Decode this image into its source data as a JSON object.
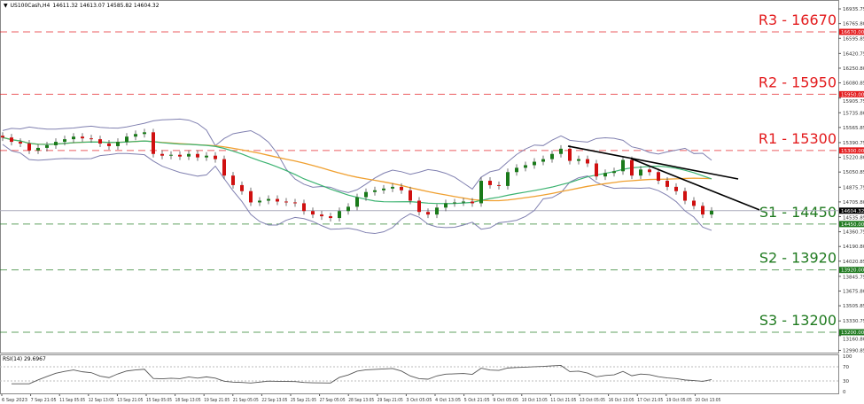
{
  "header": {
    "symbol": "US100Cash,H4",
    "ohlc": "14611.32 14613.07 14585.82 14604.32"
  },
  "chart_data": {
    "type": "candlestick",
    "symbol": "US100Cash",
    "timeframe": "H4",
    "ylim": [
      12950,
      17020
    ],
    "y_ticks": [
      "16935.75",
      "16765.80",
      "16595.85",
      "16420.75",
      "16250.80",
      "16080.85",
      "15905.75",
      "15735.80",
      "15565.85",
      "15390.75",
      "15220.80",
      "15050.85",
      "14875.75",
      "14705.80",
      "14535.85",
      "14360.75",
      "14190.80",
      "14020.85",
      "13845.75",
      "13675.80",
      "13505.85",
      "13330.75",
      "13160.80",
      "12990.85"
    ],
    "x_ticks": [
      "6 Sep 2023",
      "7 Sep 21:05",
      "11 Sep 05:05",
      "12 Sep 13:05",
      "13 Sep 21:05",
      "15 Sep 05:05",
      "18 Sep 13:05",
      "19 Sep 21:05",
      "21 Sep 05:05",
      "22 Sep 13:05",
      "25 Sep 21:05",
      "27 Sep 05:05",
      "28 Sep 13:05",
      "29 Sep 21:05",
      "3 Oct 05:05",
      "4 Oct 13:05",
      "5 Oct 21:05",
      "9 Oct 05:05",
      "10 Oct 13:05",
      "11 Oct 21:05",
      "13 Oct 05:05",
      "16 Oct 13:05",
      "17 Oct 21:05",
      "19 Oct 05:05",
      "20 Oct 13:05"
    ],
    "closes": [
      15450,
      15400,
      15380,
      15300,
      15330,
      15360,
      15400,
      15430,
      15460,
      15440,
      15430,
      15380,
      15350,
      15400,
      15460,
      15490,
      15510,
      15260,
      15240,
      15250,
      15230,
      15260,
      15220,
      15240,
      15200,
      15010,
      14900,
      14830,
      14700,
      14720,
      14740,
      14710,
      14700,
      14690,
      14600,
      14560,
      14540,
      14520,
      14600,
      14650,
      14760,
      14820,
      14840,
      14860,
      14880,
      14840,
      14720,
      14590,
      14560,
      14640,
      14690,
      14700,
      14710,
      14690,
      14950,
      14900,
      14890,
      15050,
      15100,
      15130,
      15170,
      15200,
      15260,
      15320,
      15180,
      15200,
      15150,
      15000,
      15040,
      15060,
      15190,
      15010,
      15080,
      15050,
      14950,
      14880,
      14830,
      14720,
      14660,
      14560,
      14604
    ],
    "current_price": {
      "value": 14604.32,
      "label": "14604.32"
    },
    "levels": [
      {
        "name": "R3",
        "value": 16670,
        "text": "R3 - 16670",
        "tag": "16670.00",
        "color": "#e31a1c"
      },
      {
        "name": "R2",
        "value": 15950,
        "text": "R2 - 15950",
        "tag": "15950.00",
        "color": "#e31a1c"
      },
      {
        "name": "R1",
        "value": 15300,
        "text": "R1 - 15300",
        "tag": "15300.00",
        "color": "#e31a1c"
      },
      {
        "name": "S1",
        "value": 14450,
        "text": "S1 - 14450",
        "tag": "14450.00",
        "color": "#1f7a1f"
      },
      {
        "name": "S2",
        "value": 13920,
        "text": "S2 - 13920",
        "tag": "13920.00",
        "color": "#1f7a1f"
      },
      {
        "name": "S3",
        "value": 13200,
        "text": "S3 - 13200",
        "tag": "13200.00",
        "color": "#1f7a1f"
      }
    ],
    "trendlines": [
      {
        "from": [
          63.8,
          15350
        ],
        "to": [
          83,
          14971
        ]
      },
      {
        "from": [
          70.9,
          15206
        ],
        "to": [
          85.4,
          14614
        ]
      }
    ],
    "indicators": {
      "ma_fast_color": "#3cb371",
      "ma_slow_color": "#f0a030",
      "bollinger_color": "#8080b0",
      "bull_color": "#1a7a1a",
      "bear_color": "#d01010"
    },
    "rsi": {
      "label": "RSI(14) 29.6967",
      "levels": [
        "100",
        "70",
        "30",
        "0"
      ],
      "level_values": [
        100,
        70,
        30,
        0
      ]
    }
  }
}
